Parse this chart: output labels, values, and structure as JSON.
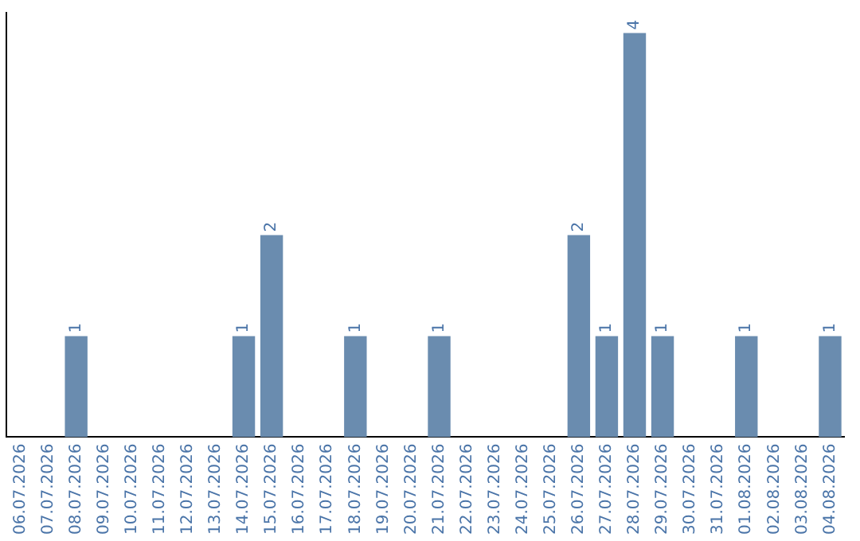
{
  "chart_data": {
    "type": "bar",
    "categories": [
      "06.07.2026",
      "07.07.2026",
      "08.07.2026",
      "09.07.2026",
      "10.07.2026",
      "11.07.2026",
      "12.07.2026",
      "13.07.2026",
      "14.07.2026",
      "15.07.2026",
      "16.07.2026",
      "17.07.2026",
      "18.07.2026",
      "19.07.2026",
      "20.07.2026",
      "21.07.2026",
      "22.07.2026",
      "23.07.2026",
      "24.07.2026",
      "25.07.2026",
      "26.07.2026",
      "27.07.2026",
      "28.07.2026",
      "29.07.2026",
      "30.07.2026",
      "31.07.2026",
      "01.08.2026",
      "02.08.2026",
      "03.08.2026",
      "04.08.2026"
    ],
    "values": [
      0,
      0,
      1,
      0,
      0,
      0,
      0,
      0,
      1,
      2,
      0,
      0,
      1,
      0,
      0,
      1,
      0,
      0,
      0,
      0,
      2,
      1,
      4,
      1,
      0,
      0,
      1,
      0,
      0,
      1
    ],
    "value_labels": [
      null,
      null,
      "1",
      null,
      null,
      null,
      null,
      null,
      "1",
      "2",
      null,
      null,
      "1",
      null,
      null,
      "1",
      null,
      null,
      null,
      null,
      "2",
      "1",
      "4",
      "1",
      null,
      null,
      "1",
      null,
      null,
      "1"
    ],
    "color": "#6a8caf",
    "ylim": [
      0,
      4.2
    ],
    "tick_labels": "x",
    "grid": false,
    "legend": false
  }
}
